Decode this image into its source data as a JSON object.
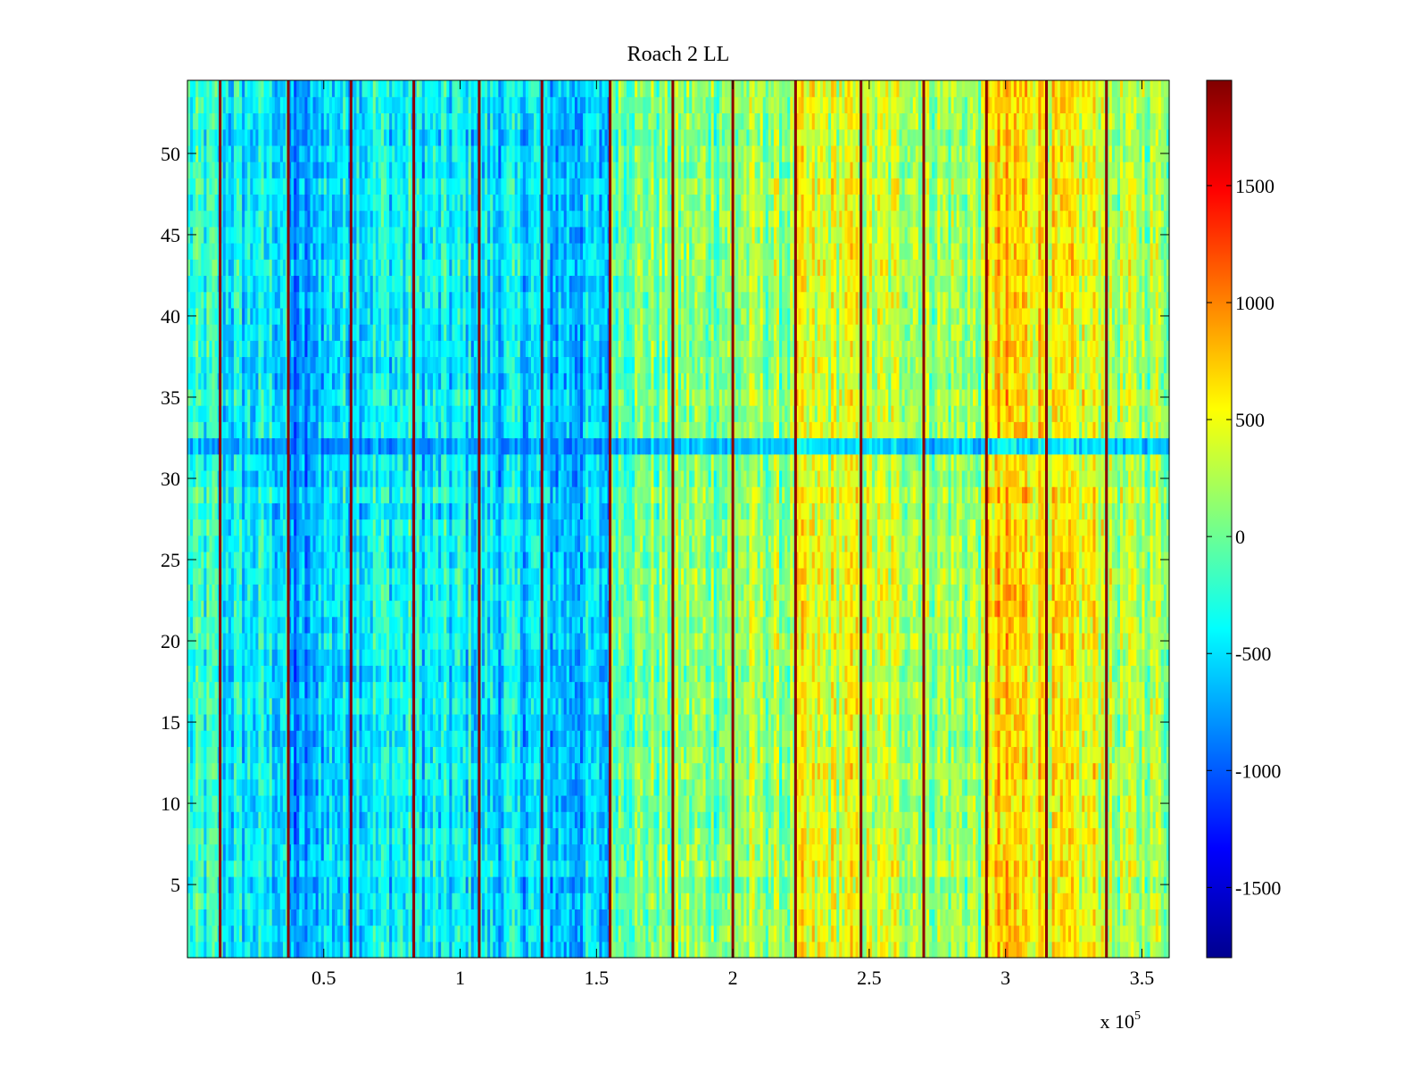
{
  "chart_data": {
    "type": "heatmap",
    "title": "Roach 2 LL",
    "xlabel": "",
    "ylabel": "",
    "x_exponent_label": "x 10",
    "x_exponent_power": "5",
    "xlim": [
      0,
      3.6
    ],
    "ylim": [
      0.5,
      54.5
    ],
    "x_ticks": [
      0.5,
      1,
      1.5,
      2,
      2.5,
      3,
      3.5
    ],
    "x_tick_labels": [
      "0.5",
      "1",
      "1.5",
      "2",
      "2.5",
      "3",
      "3.5"
    ],
    "y_ticks": [
      5,
      10,
      15,
      20,
      25,
      30,
      35,
      40,
      45,
      50
    ],
    "y_tick_labels": [
      "5",
      "10",
      "15",
      "20",
      "25",
      "30",
      "35",
      "40",
      "45",
      "50"
    ],
    "rows": 54,
    "grid": false,
    "colormap": "jet",
    "colorbar": {
      "clim": [
        -1800,
        1950
      ],
      "ticks": [
        -1500,
        -1000,
        -500,
        0,
        500,
        1000,
        1500
      ],
      "tick_labels": [
        "-1500",
        "-1000",
        "-500",
        "0",
        "500",
        "1000",
        "1500"
      ]
    },
    "column_bands": [
      {
        "x_start": 0.0,
        "x_end": 0.12,
        "mean": -300
      },
      {
        "x_start": 0.12,
        "x_end": 0.37,
        "mean": -450
      },
      {
        "x_start": 0.37,
        "x_end": 0.47,
        "mean": -800
      },
      {
        "x_start": 0.47,
        "x_end": 0.6,
        "mean": -500
      },
      {
        "x_start": 0.6,
        "x_end": 0.83,
        "mean": -380
      },
      {
        "x_start": 0.83,
        "x_end": 1.07,
        "mean": -450
      },
      {
        "x_start": 1.07,
        "x_end": 1.3,
        "mean": -500
      },
      {
        "x_start": 1.3,
        "x_end": 1.55,
        "mean": -600
      },
      {
        "x_start": 1.55,
        "x_end": 1.78,
        "mean": 50
      },
      {
        "x_start": 1.78,
        "x_end": 2.0,
        "mean": 100
      },
      {
        "x_start": 2.0,
        "x_end": 2.23,
        "mean": 150
      },
      {
        "x_start": 2.23,
        "x_end": 2.47,
        "mean": 380
      },
      {
        "x_start": 2.47,
        "x_end": 2.7,
        "mean": 300
      },
      {
        "x_start": 2.7,
        "x_end": 2.93,
        "mean": 180
      },
      {
        "x_start": 2.93,
        "x_end": 3.15,
        "mean": 650
      },
      {
        "x_start": 3.15,
        "x_end": 3.37,
        "mean": 450
      },
      {
        "x_start": 3.37,
        "x_end": 3.6,
        "mean": 220
      }
    ],
    "spike_columns_x": [
      0.12,
      0.37,
      0.6,
      0.83,
      1.07,
      1.3,
      1.55,
      1.78,
      2.0,
      2.23,
      2.47,
      2.7,
      2.93,
      3.15,
      3.37
    ],
    "spike_value": 1900,
    "anomalous_row": {
      "row": 32,
      "value": -1300
    }
  }
}
